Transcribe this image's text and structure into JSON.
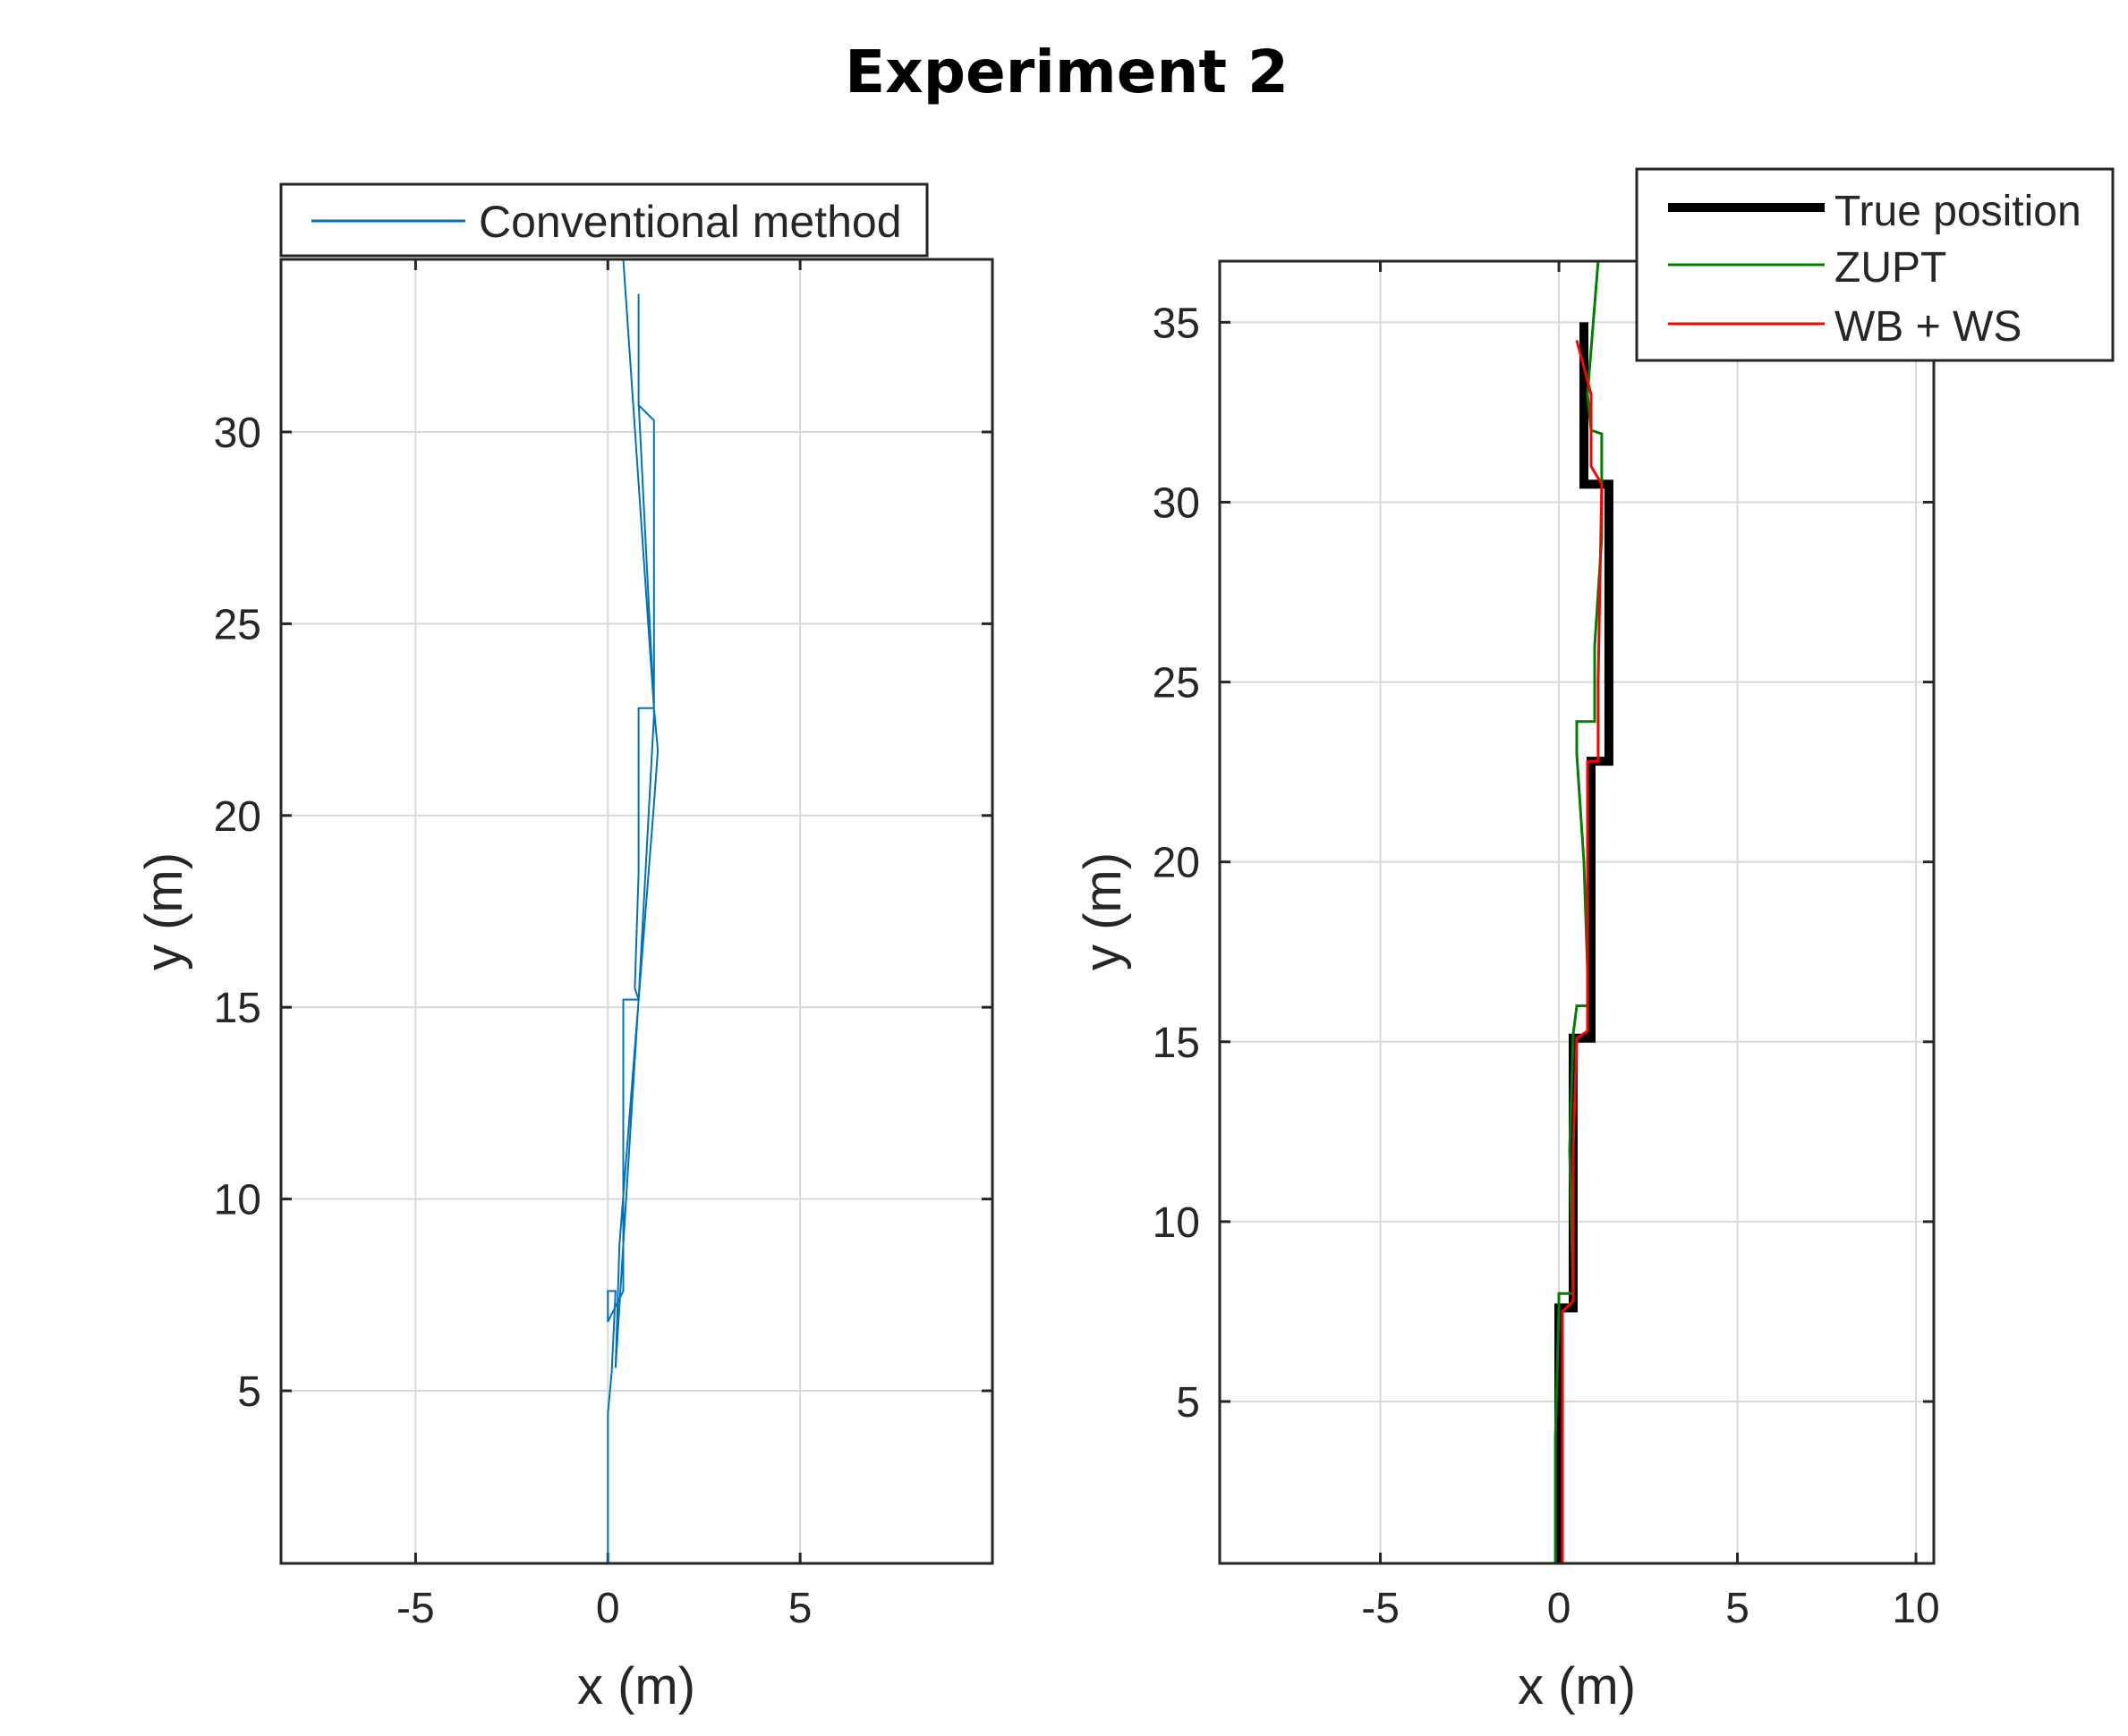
{
  "figure": {
    "title": "Experiment 2"
  },
  "chart_data": [
    {
      "type": "line",
      "xlabel": "x (m)",
      "ylabel": "y (m)",
      "xlim": [
        -8.5,
        10.0
      ],
      "ylim": [
        0.5,
        34.5
      ],
      "xticks": [
        -5,
        0,
        5
      ],
      "yticks": [
        5,
        10,
        15,
        20,
        25,
        30
      ],
      "grid": true,
      "legend_position": "top-left, outside axes",
      "series": [
        {
          "name": "Conventional method",
          "color": "#0072BD",
          "width": 2,
          "points": [
            [
              0.0,
              0.5
            ],
            [
              0.0,
              4.4
            ],
            [
              0.1,
              5.5
            ],
            [
              0.2,
              7.6
            ],
            [
              0.0,
              7.6
            ],
            [
              0.0,
              6.8
            ],
            [
              0.4,
              7.6
            ],
            [
              0.4,
              11.0
            ],
            [
              0.4,
              15.2
            ],
            [
              0.8,
              15.2
            ],
            [
              0.8,
              15.2
            ],
            [
              0.7,
              15.5
            ],
            [
              0.8,
              18.5
            ],
            [
              0.8,
              22.8
            ],
            [
              1.2,
              22.8
            ],
            [
              1.3,
              21.7
            ],
            [
              1.2,
              20.3
            ],
            [
              0.3,
              8.8
            ],
            [
              0.2,
              5.6
            ],
            [
              0.8,
              15.2
            ],
            [
              1.2,
              22.6
            ],
            [
              1.2,
              30.3
            ],
            [
              0.8,
              30.7
            ],
            [
              0.8,
              33.6
            ],
            [
              0.8,
              30.8
            ],
            [
              1.2,
              22.8
            ],
            [
              0.4,
              34.5
            ]
          ]
        }
      ]
    },
    {
      "type": "line",
      "xlabel": "x (m)",
      "ylabel": "y (m)",
      "xlim": [
        -9.5,
        10.5
      ],
      "ylim": [
        0.5,
        36.7
      ],
      "xticks": [
        -5,
        0,
        5,
        10
      ],
      "yticks": [
        5,
        10,
        15,
        20,
        25,
        30,
        35
      ],
      "grid": true,
      "legend_position": "top-right, outside axes",
      "series": [
        {
          "name": "True position",
          "color": "#000000",
          "width": 10,
          "points": [
            [
              0.0,
              0.5
            ],
            [
              0.0,
              7.6
            ],
            [
              0.4,
              7.6
            ],
            [
              0.4,
              15.1
            ],
            [
              0.9,
              15.1
            ],
            [
              0.9,
              22.8
            ],
            [
              1.4,
              22.8
            ],
            [
              1.4,
              30.5
            ],
            [
              0.7,
              30.5
            ],
            [
              0.7,
              35.0
            ]
          ]
        },
        {
          "name": "ZUPT",
          "color": "#008000",
          "width": 3,
          "points": [
            [
              -0.1,
              0.5
            ],
            [
              -0.1,
              4.0
            ],
            [
              0.0,
              7.6
            ],
            [
              0.0,
              8.0
            ],
            [
              0.4,
              8.0
            ],
            [
              0.3,
              12.0
            ],
            [
              0.4,
              15.2
            ],
            [
              0.5,
              16.0
            ],
            [
              0.8,
              16.0
            ],
            [
              0.8,
              17.0
            ],
            [
              0.7,
              20.0
            ],
            [
              0.5,
              23.0
            ],
            [
              0.5,
              23.9
            ],
            [
              1.0,
              23.9
            ],
            [
              1.0,
              26.0
            ],
            [
              1.2,
              29.0
            ],
            [
              1.2,
              31.9
            ],
            [
              0.9,
              32.0
            ],
            [
              0.8,
              33.0
            ],
            [
              1.1,
              36.7
            ]
          ]
        },
        {
          "name": "WB + WS",
          "color": "#FF0000",
          "width": 3,
          "points": [
            [
              0.1,
              0.5
            ],
            [
              0.1,
              7.5
            ],
            [
              0.4,
              7.8
            ],
            [
              0.4,
              12.0
            ],
            [
              0.5,
              15.1
            ],
            [
              0.8,
              15.3
            ],
            [
              0.8,
              19.0
            ],
            [
              0.8,
              22.8
            ],
            [
              1.1,
              22.8
            ],
            [
              1.1,
              25.0
            ],
            [
              1.2,
              30.5
            ],
            [
              0.9,
              31.0
            ],
            [
              0.9,
              33.0
            ],
            [
              0.5,
              34.5
            ]
          ]
        }
      ]
    }
  ]
}
